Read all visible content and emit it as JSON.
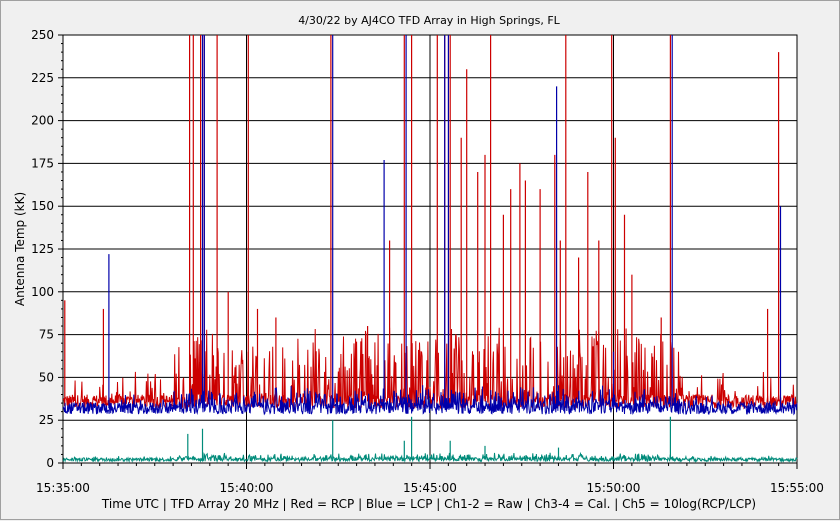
{
  "chart_data": {
    "type": "line",
    "title": "4/30/22  by  AJ4CO TFD Array  in  High Springs, FL",
    "ylabel": "Antenna Temp (kK)",
    "xlabel": "Time UTC | TFD Array 20 MHz | Red = RCP | Blue = LCP | Ch1-2 = Raw | Ch3-4 = Cal. | Ch5 = 10log(RCP/LCP)",
    "ylim": [
      0,
      250
    ],
    "xlim_minutes": [
      0,
      20
    ],
    "y_ticks": [
      0,
      25,
      50,
      75,
      100,
      125,
      150,
      175,
      200,
      225,
      250
    ],
    "y_tick_labels": [
      "0",
      "25",
      "50",
      "75",
      "100",
      "125",
      "150",
      "175",
      "200",
      "225",
      "250"
    ],
    "x_tick_minutes": [
      0,
      5,
      10,
      15,
      20
    ],
    "x_tick_labels": [
      "15:35:00",
      "15:40:00",
      "15:45:00",
      "15:50:00",
      "15:55:00"
    ],
    "grid": true,
    "series": [
      {
        "name": "RCP",
        "color": "#cc0000",
        "baseline": 36,
        "spikes": [
          {
            "t": 0.05,
            "v": 95
          },
          {
            "t": 1.1,
            "v": 90
          },
          {
            "t": 3.45,
            "v": 250
          },
          {
            "t": 3.55,
            "v": 250
          },
          {
            "t": 3.75,
            "v": 250
          },
          {
            "t": 3.85,
            "v": 250
          },
          {
            "t": 4.2,
            "v": 250
          },
          {
            "t": 4.5,
            "v": 100
          },
          {
            "t": 5.05,
            "v": 250
          },
          {
            "t": 5.3,
            "v": 90
          },
          {
            "t": 5.8,
            "v": 85
          },
          {
            "t": 7.3,
            "v": 250
          },
          {
            "t": 8.3,
            "v": 80
          },
          {
            "t": 8.9,
            "v": 130
          },
          {
            "t": 9.3,
            "v": 250
          },
          {
            "t": 9.5,
            "v": 250
          },
          {
            "t": 10.2,
            "v": 250
          },
          {
            "t": 10.4,
            "v": 250
          },
          {
            "t": 10.55,
            "v": 250
          },
          {
            "t": 10.85,
            "v": 190
          },
          {
            "t": 11.0,
            "v": 230
          },
          {
            "t": 11.3,
            "v": 170
          },
          {
            "t": 11.5,
            "v": 180
          },
          {
            "t": 11.65,
            "v": 250
          },
          {
            "t": 12.0,
            "v": 145
          },
          {
            "t": 12.2,
            "v": 160
          },
          {
            "t": 12.45,
            "v": 175
          },
          {
            "t": 12.6,
            "v": 165
          },
          {
            "t": 13.0,
            "v": 160
          },
          {
            "t": 13.4,
            "v": 180
          },
          {
            "t": 13.55,
            "v": 130
          },
          {
            "t": 13.7,
            "v": 250
          },
          {
            "t": 14.05,
            "v": 120
          },
          {
            "t": 14.3,
            "v": 170
          },
          {
            "t": 14.6,
            "v": 130
          },
          {
            "t": 14.95,
            "v": 250
          },
          {
            "t": 15.05,
            "v": 190
          },
          {
            "t": 15.3,
            "v": 145
          },
          {
            "t": 15.5,
            "v": 110
          },
          {
            "t": 16.3,
            "v": 85
          },
          {
            "t": 16.55,
            "v": 250
          },
          {
            "t": 19.2,
            "v": 90
          },
          {
            "t": 19.5,
            "v": 240
          }
        ]
      },
      {
        "name": "LCP",
        "color": "#0000aa",
        "baseline": 32,
        "spikes": [
          {
            "t": 1.25,
            "v": 122
          },
          {
            "t": 3.8,
            "v": 250
          },
          {
            "t": 3.85,
            "v": 250
          },
          {
            "t": 7.35,
            "v": 250
          },
          {
            "t": 8.75,
            "v": 177
          },
          {
            "t": 9.35,
            "v": 250
          },
          {
            "t": 10.4,
            "v": 250
          },
          {
            "t": 10.5,
            "v": 250
          },
          {
            "t": 13.45,
            "v": 220
          },
          {
            "t": 15.0,
            "v": 65
          },
          {
            "t": 16.6,
            "v": 250
          },
          {
            "t": 19.55,
            "v": 150
          }
        ]
      },
      {
        "name": "10log(RCP/LCP)",
        "color": "#008b7a",
        "baseline": 2,
        "spikes": [
          {
            "t": 3.4,
            "v": 17
          },
          {
            "t": 3.8,
            "v": 20
          },
          {
            "t": 7.35,
            "v": 25
          },
          {
            "t": 9.3,
            "v": 13
          },
          {
            "t": 9.5,
            "v": 27
          },
          {
            "t": 10.55,
            "v": 13
          },
          {
            "t": 11.5,
            "v": 10
          },
          {
            "t": 13.5,
            "v": 9
          },
          {
            "t": 16.55,
            "v": 27
          }
        ]
      }
    ]
  }
}
